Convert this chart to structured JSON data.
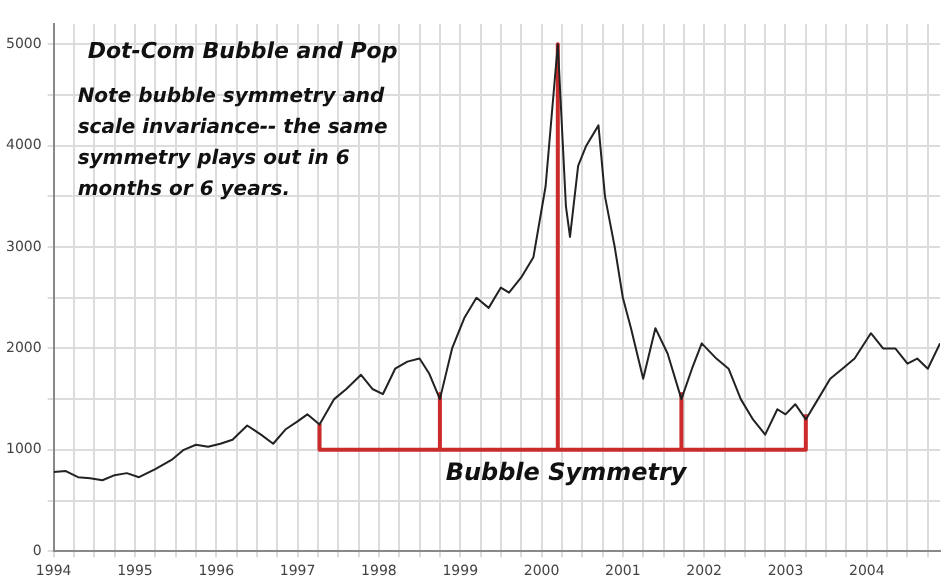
{
  "chart_data": {
    "type": "line",
    "title": "Dot-Com Bubble and Pop",
    "annotations": [
      "Note bubble symmetry and scale invariance-- the same symmetry plays out in 6 months or 6 years.",
      "Bubble Symmetry"
    ],
    "xlim": [
      1994,
      2004.9
    ],
    "xticks": [
      1994,
      {
        "value": 1994.25,
        "label": null
      },
      {
        "value": 1994.5,
        "label": null
      },
      {
        "value": 1994.75,
        "label": null
      },
      1995,
      {
        "value": 1995.25,
        "label": null
      },
      {
        "value": 1995.5,
        "label": null
      },
      {
        "value": 1995.75,
        "label": null
      },
      1996,
      {
        "value": 1996.25,
        "label": null
      },
      {
        "value": 1996.5,
        "label": null
      },
      {
        "value": 1996.75,
        "label": null
      },
      1997,
      {
        "value": 1997.25,
        "label": null
      },
      {
        "value": 1997.5,
        "label": null
      },
      {
        "value": 1997.75,
        "label": null
      },
      1998,
      {
        "value": 1998.25,
        "label": null
      },
      {
        "value": 1998.5,
        "label": null
      },
      {
        "value": 1998.75,
        "label": null
      },
      1999,
      {
        "value": 1999.25,
        "label": null
      },
      {
        "value": 1999.5,
        "label": null
      },
      {
        "value": 1999.75,
        "label": null
      },
      2000,
      {
        "value": 2000.25,
        "label": null
      },
      {
        "value": 2000.5,
        "label": null
      },
      {
        "value": 2000.75,
        "label": null
      },
      2001,
      {
        "value": 2001.25,
        "label": null
      },
      {
        "value": 2001.5,
        "label": null
      },
      {
        "value": 2001.75,
        "label": null
      },
      2002,
      {
        "value": 2002.25,
        "label": null
      },
      {
        "value": 2002.5,
        "label": null
      },
      {
        "value": 2002.75,
        "label": null
      },
      2003,
      {
        "value": 2003.25,
        "label": null
      },
      {
        "value": 2003.5,
        "label": null
      },
      {
        "value": 2003.75,
        "label": null
      },
      2004,
      {
        "value": 2004.25,
        "label": null
      },
      {
        "value": 2004.5,
        "label": null
      },
      {
        "value": 2004.75,
        "label": null
      }
    ],
    "ylim": [
      0,
      5200
    ],
    "yticks": [
      0,
      {
        "value": 500,
        "label": null
      },
      1000,
      {
        "value": 1500,
        "label": null
      },
      2000,
      {
        "value": 2500,
        "label": null
      },
      3000,
      {
        "value": 3500,
        "label": null
      },
      4000,
      {
        "value": 4500,
        "label": null
      },
      5000
    ],
    "grid": true,
    "legend": false,
    "marker": "none",
    "line_style": "solid",
    "series": [
      {
        "color": "#222222",
        "x": [
          1994,
          1994.15,
          1994.3,
          1994.45,
          1994.6,
          1994.75,
          1994.9,
          1995.05,
          1995.25,
          1995.45,
          1995.6,
          1995.75,
          1995.9,
          1996.05,
          1996.2,
          1996.38,
          1996.55,
          1996.7,
          1996.85,
          1997.0,
          1997.12,
          1997.27,
          1997.45,
          1997.6,
          1997.78,
          1997.92,
          1998.05,
          1998.2,
          1998.35,
          1998.5,
          1998.62,
          1998.75,
          1998.9,
          1999.05,
          1999.2,
          1999.35,
          1999.5,
          1999.6,
          1999.75,
          1999.9,
          2000.05,
          2000.2,
          2000.3,
          2000.35,
          2000.45,
          2000.55,
          2000.7,
          2000.78,
          2000.9,
          2001.0,
          2001.1,
          2001.25,
          2001.4,
          2001.55,
          2001.72,
          2001.85,
          2001.97,
          2002.15,
          2002.3,
          2002.45,
          2002.6,
          2002.75,
          2002.9,
          2003.0,
          2003.12,
          2003.25,
          2003.4,
          2003.55,
          2003.7,
          2003.85,
          2004.05,
          2004.2,
          2004.35,
          2004.5,
          2004.62,
          2004.75,
          2004.9
        ],
        "values": [
          780,
          790,
          730,
          720,
          700,
          750,
          770,
          730,
          810,
          900,
          1000,
          1050,
          1030,
          1060,
          1100,
          1240,
          1150,
          1060,
          1200,
          1280,
          1350,
          1250,
          1500,
          1600,
          1740,
          1600,
          1550,
          1800,
          1870,
          1900,
          1750,
          1500,
          2000,
          2300,
          2500,
          2400,
          2600,
          2550,
          2700,
          2900,
          3600,
          5000,
          3400,
          3100,
          3800,
          4000,
          4200,
          3500,
          3000,
          2500,
          2200,
          1700,
          2200,
          1950,
          1500,
          1800,
          2050,
          1900,
          1800,
          1500,
          1300,
          1150,
          1400,
          1350,
          1450,
          1300,
          1500,
          1700,
          1800,
          1900,
          2150,
          2000,
          2000,
          1850,
          1900,
          1800,
          2050
        ]
      },
      {
        "color": "#cc2b2b",
        "x": [
          1997.27,
          1997.27,
          1998.75,
          1998.75,
          1998.75,
          2000.2,
          2000.2,
          2000.2,
          2001.72,
          2001.72,
          2001.72,
          2003.25,
          2003.25
        ],
        "values": [
          1250,
          1000,
          1000,
          1550,
          1000,
          1000,
          5000,
          1000,
          1000,
          1550,
          1000,
          1000,
          1350
        ]
      }
    ]
  }
}
